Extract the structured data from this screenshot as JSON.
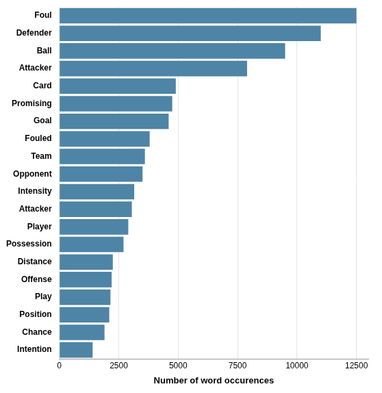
{
  "chart_data": {
    "type": "bar",
    "orientation": "horizontal",
    "categories": [
      "Intention",
      "Chance",
      "Position",
      "Play",
      "Offense",
      "Distance",
      "Possession",
      "Player",
      "Attacker",
      "Intensity",
      "Opponent",
      "Team",
      "Fouled",
      "Goal",
      "Promising",
      "Card",
      "Attacker",
      "Ball",
      "Defender",
      "Foul"
    ],
    "values": [
      1400,
      1900,
      2100,
      2150,
      2200,
      2250,
      2700,
      2900,
      3050,
      3150,
      3500,
      3600,
      3800,
      4600,
      4750,
      4900,
      7900,
      9500,
      11000,
      12500
    ],
    "color": "#4e84a5",
    "xlabel": "Number of word occurences",
    "xlim": [
      0,
      13000
    ],
    "xticks": [
      0,
      2500,
      5000,
      7500,
      10000,
      12500
    ],
    "grid": true
  }
}
